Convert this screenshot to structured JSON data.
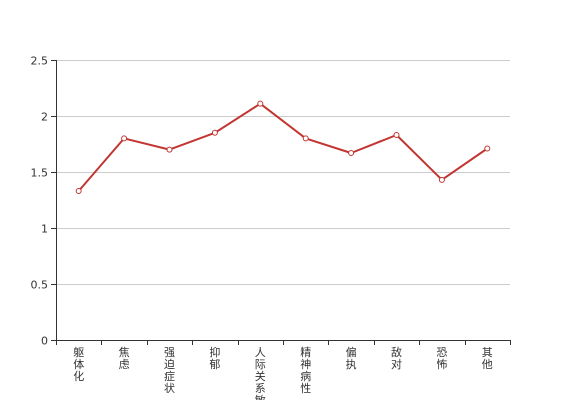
{
  "chart_data": {
    "type": "line",
    "title": "",
    "xlabel": "",
    "ylabel": "",
    "categories": [
      "躯体化",
      "焦虑",
      "强迫症状",
      "抑郁",
      "人际关系敏感",
      "精神病性",
      "偏执",
      "敌对",
      "恐怖",
      "其他"
    ],
    "series": [
      {
        "values": [
          1.33,
          1.8,
          1.7,
          1.85,
          2.11,
          1.8,
          1.67,
          1.83,
          1.43,
          1.71
        ]
      }
    ],
    "ylim": [
      0,
      2.5
    ],
    "yticks": [
      "0",
      "0.5",
      "1",
      "1.5",
      "2",
      "2.5"
    ],
    "ytick_values": [
      0,
      0.5,
      1,
      1.5,
      2,
      2.5
    ],
    "grid": true,
    "line_color": "#c23531",
    "grid_color": "#cccccc",
    "axis_color": "#333333"
  }
}
